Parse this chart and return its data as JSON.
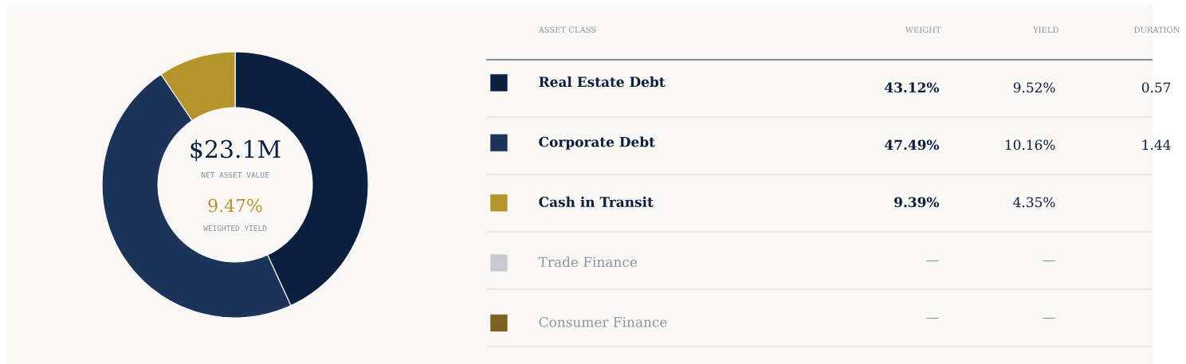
{
  "chart_data": {
    "type": "donut",
    "categories": [
      "Real Estate Debt",
      "Corporate Debt",
      "Cash in Transit",
      "Trade Finance",
      "Consumer Finance"
    ],
    "values": [
      43.12,
      47.49,
      9.39,
      null,
      null
    ],
    "colors": [
      "#0b1f3f",
      "#1c335a",
      "#b5952b",
      "#c8cad0",
      "#7a6223"
    ],
    "legend": "right",
    "value_labels": [
      "43.12%",
      "47.49%",
      "9.39%",
      "—",
      "—"
    ],
    "annotations": [
      "$23.1M",
      "NET ASSET VALUE",
      "9.47%",
      "WEIGHTED YIELD",
      "ASSET CLASS",
      "WEIGHT",
      "YIELD",
      "DURATION",
      "9.52%",
      "10.16%",
      "4.35%",
      "—",
      "—",
      "0.57",
      "1.44"
    ]
  }
}
